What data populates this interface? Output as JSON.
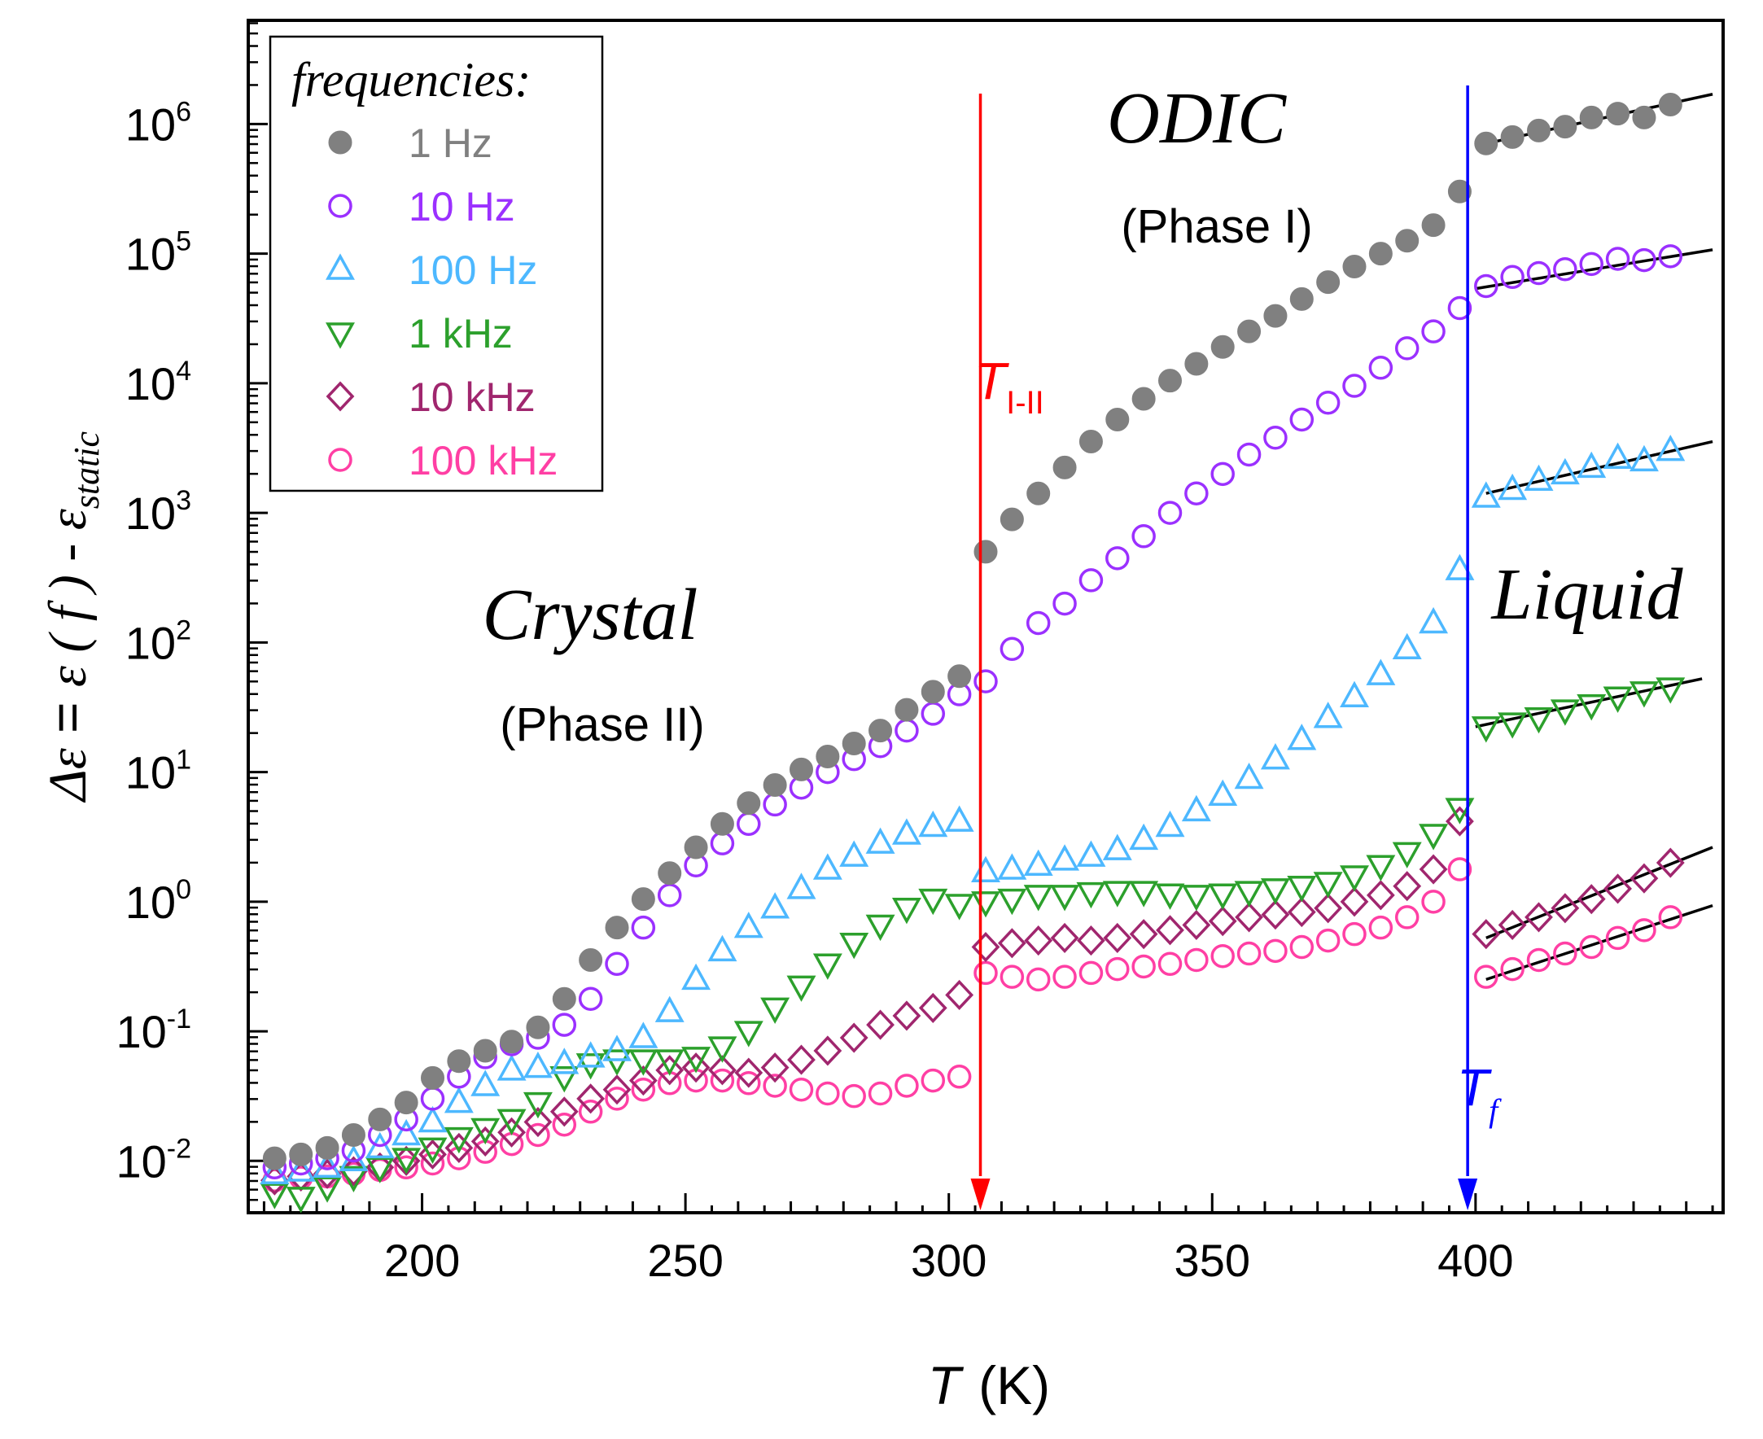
{
  "chart_data": {
    "type": "scatter",
    "title": "",
    "xlabel": "T (K)",
    "xlabel_parts": {
      "symbol": "T",
      "unit": "(K)"
    },
    "ylabel": "Δε = ε(f) - ε_static",
    "ylabel_parts": {
      "lhs": "Δε",
      "eq": " = ",
      "eps": "ε",
      "arg": " ( f ) - ",
      "eps2": "ε",
      "sub": "static"
    },
    "xlim": [
      167,
      447
    ],
    "ylim_log10": [
      -2.4,
      6.8
    ],
    "yscale": "log",
    "x_ticks": [
      200,
      250,
      300,
      350,
      400
    ],
    "x_tick_labels": [
      "200",
      "250",
      "300",
      "350",
      "400"
    ],
    "y_ticks_log10": [
      -2,
      -1,
      0,
      1,
      2,
      3,
      4,
      5,
      6
    ],
    "y_tick_labels": [
      {
        "base": "10",
        "exp": "-2"
      },
      {
        "base": "10",
        "exp": "-1"
      },
      {
        "base": "10",
        "exp": "0"
      },
      {
        "base": "10",
        "exp": "1"
      },
      {
        "base": "10",
        "exp": "2"
      },
      {
        "base": "10",
        "exp": "3"
      },
      {
        "base": "10",
        "exp": "4"
      },
      {
        "base": "10",
        "exp": "5"
      },
      {
        "base": "10",
        "exp": "6"
      }
    ],
    "legend": {
      "title": "frequencies:",
      "placement": "top-left"
    },
    "annotations": {
      "odic": {
        "title": "ODIC",
        "subtitle": "(Phase I)"
      },
      "crystal": {
        "title": "Crystal",
        "subtitle": "(Phase II)"
      },
      "liquid": {
        "title": "Liquid"
      },
      "transition_I_II": {
        "symbol": "T",
        "subscript": "I-II",
        "T": 306,
        "color": "#ff0000"
      },
      "transition_f": {
        "symbol": "T",
        "subscript": "f",
        "T": 398.5,
        "color": "#0000ff"
      }
    },
    "series": [
      {
        "name": "1 Hz",
        "color": "#808080",
        "marker": "filled-circle",
        "x": [
          172,
          177,
          182,
          187,
          192,
          197,
          202,
          207,
          212,
          217,
          222,
          227,
          232,
          237,
          242,
          247,
          252,
          257,
          262,
          267,
          272,
          277,
          282,
          287,
          292,
          297,
          302,
          307,
          312,
          317,
          322,
          327,
          332,
          337,
          342,
          347,
          352,
          357,
          362,
          367,
          372,
          377,
          382,
          387,
          392,
          397,
          402,
          407,
          412,
          417,
          422,
          427,
          432,
          437
        ],
        "log10_values": [
          -1.98,
          -1.95,
          -1.9,
          -1.8,
          -1.68,
          -1.55,
          -1.36,
          -1.23,
          -1.15,
          -1.08,
          -0.97,
          -0.75,
          -0.45,
          -0.2,
          0.02,
          0.22,
          0.42,
          0.6,
          0.76,
          0.9,
          1.02,
          1.12,
          1.22,
          1.32,
          1.48,
          1.62,
          1.74,
          2.7,
          2.95,
          3.15,
          3.35,
          3.55,
          3.72,
          3.88,
          4.02,
          4.15,
          4.28,
          4.4,
          4.52,
          4.65,
          4.78,
          4.9,
          5.0,
          5.1,
          5.22,
          5.48,
          5.85,
          5.9,
          5.95,
          5.98,
          6.05,
          6.08,
          6.05,
          6.15
        ]
      },
      {
        "name": "10 Hz",
        "color": "#9b30ff",
        "marker": "open-circle",
        "x": [
          172,
          177,
          182,
          187,
          192,
          197,
          202,
          207,
          212,
          217,
          222,
          227,
          232,
          237,
          242,
          247,
          252,
          257,
          262,
          267,
          272,
          277,
          282,
          287,
          292,
          297,
          302,
          307,
          312,
          317,
          322,
          327,
          332,
          337,
          342,
          347,
          352,
          357,
          362,
          367,
          372,
          377,
          382,
          387,
          392,
          397,
          402,
          407,
          412,
          417,
          422,
          427,
          432,
          437
        ],
        "log10_values": [
          -2.05,
          -2.02,
          -1.98,
          -1.92,
          -1.8,
          -1.68,
          -1.52,
          -1.35,
          -1.2,
          -1.1,
          -1.05,
          -0.95,
          -0.75,
          -0.48,
          -0.2,
          0.05,
          0.28,
          0.45,
          0.6,
          0.75,
          0.88,
          1.0,
          1.1,
          1.2,
          1.32,
          1.45,
          1.6,
          1.7,
          1.95,
          2.15,
          2.3,
          2.48,
          2.65,
          2.82,
          3.0,
          3.15,
          3.3,
          3.45,
          3.58,
          3.72,
          3.85,
          3.98,
          4.12,
          4.27,
          4.4,
          4.58,
          4.75,
          4.82,
          4.85,
          4.88,
          4.92,
          4.96,
          4.95,
          4.98
        ]
      },
      {
        "name": "100 Hz",
        "color": "#4db8ff",
        "marker": "open-triangle-up",
        "x": [
          172,
          177,
          182,
          187,
          192,
          197,
          202,
          207,
          212,
          217,
          222,
          227,
          232,
          237,
          242,
          247,
          252,
          257,
          262,
          267,
          272,
          277,
          282,
          287,
          292,
          297,
          302,
          307,
          312,
          317,
          322,
          327,
          332,
          337,
          342,
          347,
          352,
          357,
          362,
          367,
          372,
          377,
          382,
          387,
          392,
          397,
          402,
          407,
          412,
          417,
          422,
          427,
          432,
          437
        ],
        "log10_values": [
          -2.1,
          -2.08,
          -2.05,
          -2.0,
          -1.9,
          -1.8,
          -1.7,
          -1.55,
          -1.42,
          -1.3,
          -1.28,
          -1.25,
          -1.2,
          -1.15,
          -1.05,
          -0.85,
          -0.6,
          -0.38,
          -0.2,
          -0.05,
          0.1,
          0.25,
          0.35,
          0.45,
          0.52,
          0.58,
          0.62,
          0.23,
          0.25,
          0.28,
          0.32,
          0.35,
          0.4,
          0.48,
          0.58,
          0.7,
          0.82,
          0.95,
          1.1,
          1.25,
          1.42,
          1.58,
          1.75,
          1.95,
          2.15,
          2.56,
          3.12,
          3.18,
          3.25,
          3.3,
          3.35,
          3.42,
          3.4,
          3.48
        ]
      },
      {
        "name": "1 kHz",
        "color": "#2ca02c",
        "marker": "open-triangle-down",
        "x": [
          172,
          177,
          182,
          187,
          192,
          197,
          202,
          207,
          212,
          217,
          222,
          227,
          232,
          237,
          242,
          247,
          252,
          257,
          262,
          267,
          272,
          277,
          282,
          287,
          292,
          297,
          302,
          307,
          312,
          317,
          322,
          327,
          332,
          337,
          342,
          347,
          352,
          357,
          362,
          367,
          372,
          377,
          382,
          387,
          392,
          397,
          402,
          407,
          412,
          417,
          422,
          427,
          432,
          437
        ],
        "log10_values": [
          -2.25,
          -2.28,
          -2.2,
          -2.12,
          -2.05,
          -1.98,
          -1.9,
          -1.82,
          -1.75,
          -1.68,
          -1.55,
          -1.35,
          -1.25,
          -1.22,
          -1.22,
          -1.22,
          -1.2,
          -1.12,
          -1.0,
          -0.82,
          -0.65,
          -0.48,
          -0.32,
          -0.18,
          -0.05,
          0.02,
          -0.02,
          0.0,
          0.02,
          0.05,
          0.05,
          0.07,
          0.08,
          0.08,
          0.06,
          0.05,
          0.06,
          0.08,
          0.1,
          0.12,
          0.15,
          0.2,
          0.28,
          0.38,
          0.52,
          0.72,
          1.35,
          1.38,
          1.42,
          1.48,
          1.52,
          1.58,
          1.62,
          1.65
        ]
      },
      {
        "name": "10 kHz",
        "color": "#a0266e",
        "marker": "open-diamond",
        "x": [
          172,
          177,
          182,
          187,
          192,
          197,
          202,
          207,
          212,
          217,
          222,
          227,
          232,
          237,
          242,
          247,
          252,
          257,
          262,
          267,
          272,
          277,
          282,
          287,
          292,
          297,
          302,
          307,
          312,
          317,
          322,
          327,
          332,
          337,
          342,
          347,
          352,
          357,
          362,
          367,
          372,
          377,
          382,
          387,
          392,
          397,
          402,
          407,
          412,
          417,
          422,
          427,
          432,
          437
        ],
        "log10_values": [
          -2.15,
          -2.12,
          -2.1,
          -2.08,
          -2.05,
          -2.0,
          -1.95,
          -1.9,
          -1.85,
          -1.78,
          -1.7,
          -1.62,
          -1.52,
          -1.45,
          -1.38,
          -1.3,
          -1.28,
          -1.3,
          -1.32,
          -1.28,
          -1.22,
          -1.15,
          -1.05,
          -0.95,
          -0.88,
          -0.82,
          -0.72,
          -0.35,
          -0.32,
          -0.3,
          -0.28,
          -0.3,
          -0.28,
          -0.25,
          -0.22,
          -0.18,
          -0.15,
          -0.12,
          -0.1,
          -0.08,
          -0.05,
          0.0,
          0.05,
          0.12,
          0.25,
          0.62,
          -0.25,
          -0.18,
          -0.12,
          -0.05,
          0.02,
          0.1,
          0.18,
          0.3
        ]
      },
      {
        "name": "100 kHz",
        "color": "#ff3fa4",
        "marker": "open-circle",
        "x": [
          172,
          177,
          182,
          187,
          192,
          197,
          202,
          207,
          212,
          217,
          222,
          227,
          232,
          237,
          242,
          247,
          252,
          257,
          262,
          267,
          272,
          277,
          282,
          287,
          292,
          297,
          302,
          307,
          312,
          317,
          322,
          327,
          332,
          337,
          342,
          347,
          352,
          357,
          362,
          367,
          372,
          377,
          382,
          387,
          392,
          397,
          402,
          407,
          412,
          417,
          422,
          427,
          432,
          437
        ],
        "log10_values": [
          -2.15,
          -2.13,
          -2.12,
          -2.1,
          -2.07,
          -2.05,
          -2.02,
          -1.98,
          -1.93,
          -1.87,
          -1.8,
          -1.72,
          -1.62,
          -1.52,
          -1.45,
          -1.4,
          -1.38,
          -1.38,
          -1.4,
          -1.42,
          -1.45,
          -1.48,
          -1.5,
          -1.48,
          -1.42,
          -1.38,
          -1.35,
          -0.55,
          -0.58,
          -0.6,
          -0.58,
          -0.55,
          -0.52,
          -0.5,
          -0.48,
          -0.45,
          -0.42,
          -0.4,
          -0.38,
          -0.35,
          -0.3,
          -0.25,
          -0.2,
          -0.12,
          0.0,
          0.25,
          -0.58,
          -0.52,
          -0.45,
          -0.4,
          -0.35,
          -0.28,
          -0.22,
          -0.12
        ]
      }
    ],
    "liquid_fits": [
      {
        "series": "1 Hz",
        "x": [
          402,
          445
        ],
        "log10_values": [
          5.85,
          6.23
        ]
      },
      {
        "series": "10 Hz",
        "x": [
          400,
          445
        ],
        "log10_values": [
          4.73,
          5.03
        ]
      },
      {
        "series": "100 Hz",
        "x": [
          402,
          445
        ],
        "log10_values": [
          3.15,
          3.55
        ]
      },
      {
        "series": "1 kHz",
        "x": [
          400,
          443
        ],
        "log10_values": [
          1.35,
          1.72
        ]
      },
      {
        "series": "10 kHz",
        "x": [
          402,
          445
        ],
        "log10_values": [
          -0.28,
          0.42
        ]
      },
      {
        "series": "100 kHz",
        "x": [
          402,
          445
        ],
        "log10_values": [
          -0.6,
          -0.03
        ]
      }
    ]
  }
}
